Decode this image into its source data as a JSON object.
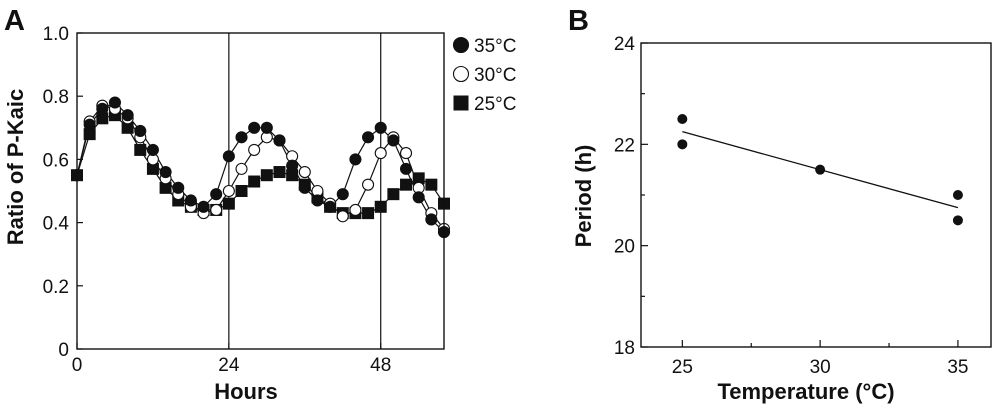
{
  "figure": {
    "panel_a_letter": "A",
    "panel_b_letter": "B"
  },
  "chart_data": [
    {
      "panel": "A",
      "type": "line",
      "xlabel": "Hours",
      "ylabel": "Ratio of P-Kaic",
      "xlim": [
        0,
        58
      ],
      "ylim": [
        0,
        1.0
      ],
      "xticks": [
        0,
        24,
        48
      ],
      "xtick_labels": [
        "0",
        "24",
        "48"
      ],
      "yticks": [
        0,
        0.2,
        0.4,
        0.6,
        0.8,
        1.0
      ],
      "ytick_labels": [
        "0",
        "0.2",
        "0.4",
        "0.6",
        "0.8",
        "1.0"
      ],
      "reference_lines_x": [
        24,
        48
      ],
      "legend_position": "top-right outside",
      "series": [
        {
          "name": "35°C",
          "marker": "filled-circle",
          "x": [
            0,
            2,
            4,
            6,
            8,
            10,
            12,
            14,
            16,
            18,
            20,
            22,
            24,
            26,
            28,
            30,
            32,
            34,
            36,
            38,
            40,
            42,
            44,
            46,
            48,
            50,
            52,
            54,
            56,
            58
          ],
          "y": [
            0.55,
            0.71,
            0.76,
            0.78,
            0.74,
            0.69,
            0.63,
            0.56,
            0.51,
            0.47,
            0.45,
            0.49,
            0.61,
            0.67,
            0.7,
            0.7,
            0.66,
            0.58,
            0.51,
            0.47,
            0.45,
            0.49,
            0.6,
            0.67,
            0.7,
            0.66,
            0.57,
            0.48,
            0.41,
            0.37
          ]
        },
        {
          "name": "30°C",
          "marker": "open-circle",
          "x": [
            0,
            2,
            4,
            6,
            8,
            10,
            12,
            14,
            16,
            18,
            20,
            22,
            24,
            26,
            28,
            30,
            32,
            34,
            36,
            38,
            40,
            42,
            44,
            46,
            48,
            50,
            52,
            54,
            56,
            58
          ],
          "y": [
            0.55,
            0.72,
            0.77,
            0.76,
            0.73,
            0.67,
            0.6,
            0.54,
            0.49,
            0.45,
            0.43,
            0.44,
            0.5,
            0.57,
            0.63,
            0.67,
            0.66,
            0.61,
            0.56,
            0.5,
            0.46,
            0.42,
            0.44,
            0.52,
            0.62,
            0.67,
            0.62,
            0.51,
            0.43,
            0.38
          ]
        },
        {
          "name": "25°C",
          "marker": "filled-square",
          "x": [
            0,
            2,
            4,
            6,
            8,
            10,
            12,
            14,
            16,
            18,
            20,
            22,
            24,
            26,
            28,
            30,
            32,
            34,
            36,
            38,
            40,
            42,
            44,
            46,
            48,
            50,
            52,
            54,
            56,
            58
          ],
          "y": [
            0.55,
            0.68,
            0.73,
            0.74,
            0.7,
            0.63,
            0.57,
            0.51,
            0.47,
            0.45,
            0.44,
            0.44,
            0.46,
            0.5,
            0.53,
            0.55,
            0.56,
            0.55,
            0.52,
            0.48,
            0.45,
            0.43,
            0.43,
            0.43,
            0.45,
            0.49,
            0.52,
            0.54,
            0.52,
            0.46
          ]
        }
      ]
    },
    {
      "panel": "B",
      "type": "scatter",
      "xlabel": "Temperature (°C)",
      "ylabel": "Period (h)",
      "xlim": [
        23.5,
        36.2
      ],
      "ylim": [
        18,
        24
      ],
      "xticks": [
        25,
        30,
        35
      ],
      "xtick_labels": [
        "25",
        "30",
        "35"
      ],
      "yticks": [
        18,
        20,
        22,
        24
      ],
      "ytick_labels": [
        "18",
        "20",
        "22",
        "24"
      ],
      "points": [
        {
          "x": 25,
          "y": 22.5
        },
        {
          "x": 25,
          "y": 22.0
        },
        {
          "x": 30,
          "y": 21.5
        },
        {
          "x": 35,
          "y": 21.0
        },
        {
          "x": 35,
          "y": 20.5
        }
      ],
      "fit_line": {
        "x": [
          25,
          35
        ],
        "y": [
          22.25,
          20.75
        ]
      }
    }
  ]
}
